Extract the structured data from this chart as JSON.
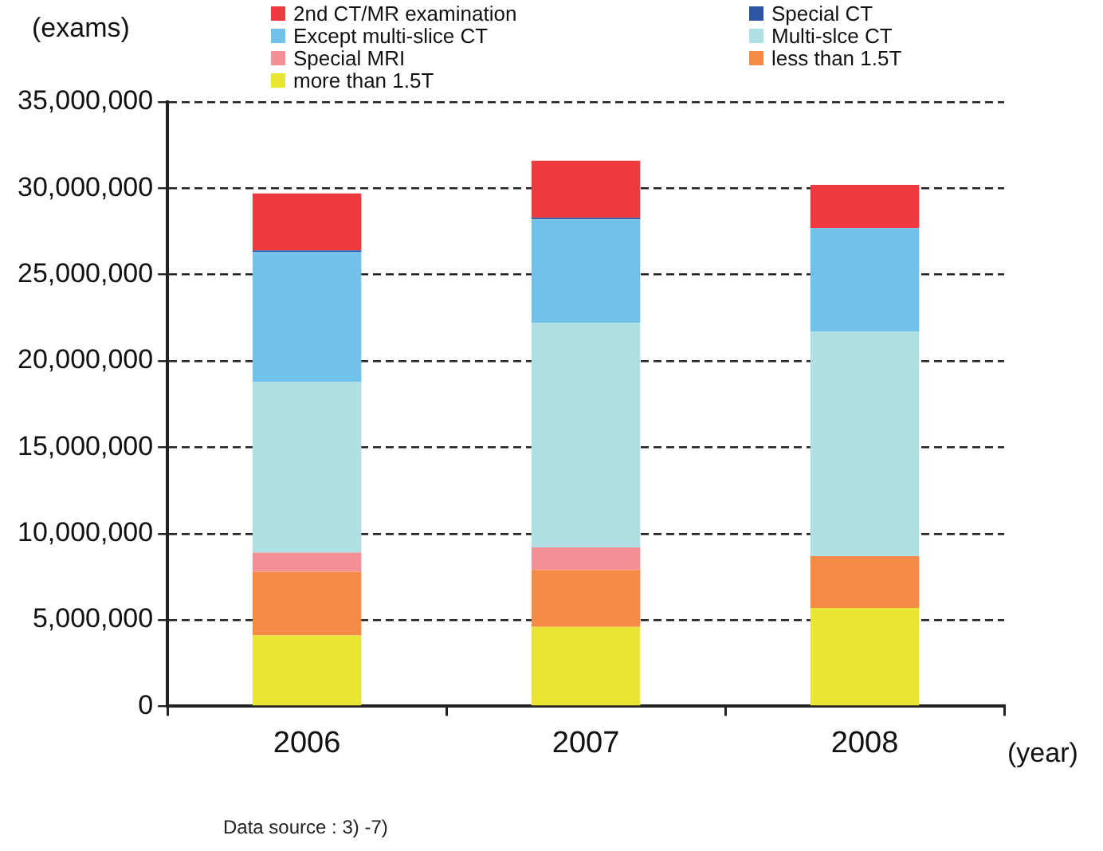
{
  "chart_data": {
    "type": "bar",
    "stacked": true,
    "ylabel": "(exams)",
    "xlabel": "(year)",
    "categories": [
      "2006",
      "2007",
      "2008"
    ],
    "series": [
      {
        "name": "more than 1.5T",
        "color": "#e8e633",
        "values": [
          4100000,
          4600000,
          5700000
        ]
      },
      {
        "name": "less than 1.5T",
        "color": "#f58b47",
        "values": [
          3700000,
          3300000,
          3000000
        ]
      },
      {
        "name": "Special MRI",
        "color": "#f39096",
        "values": [
          1100000,
          1300000,
          0
        ]
      },
      {
        "name": "Multi-slce CT",
        "color": "#aedfe3",
        "values": [
          9900000,
          13000000,
          13000000
        ]
      },
      {
        "name": "Except multi-slice CT",
        "color": "#72c1ea",
        "values": [
          7500000,
          6000000,
          6000000
        ]
      },
      {
        "name": "Special CT",
        "color": "#2e55a4",
        "values": [
          100000,
          100000,
          0
        ]
      },
      {
        "name": "2nd CT/MR examination",
        "color": "#ef3b40",
        "values": [
          3300000,
          3300000,
          2500000
        ]
      }
    ],
    "ylim": [
      0,
      35000000
    ],
    "yticks": [
      0,
      {
        "value": 5000000,
        "label": "5,000,000"
      },
      {
        "value": 10000000,
        "label": "10,000,000"
      },
      {
        "value": 15000000,
        "label": "15,000,000"
      },
      {
        "value": 20000000,
        "label": "20,000,000"
      },
      {
        "value": 25000000,
        "label": "25,000,000"
      },
      {
        "value": 30000000,
        "label": "30,000,000"
      },
      {
        "value": 35000000,
        "label": "35,000,000"
      }
    ],
    "grid": "y",
    "legend": "top",
    "annotations": [
      "Data source : 3) -7)"
    ]
  }
}
